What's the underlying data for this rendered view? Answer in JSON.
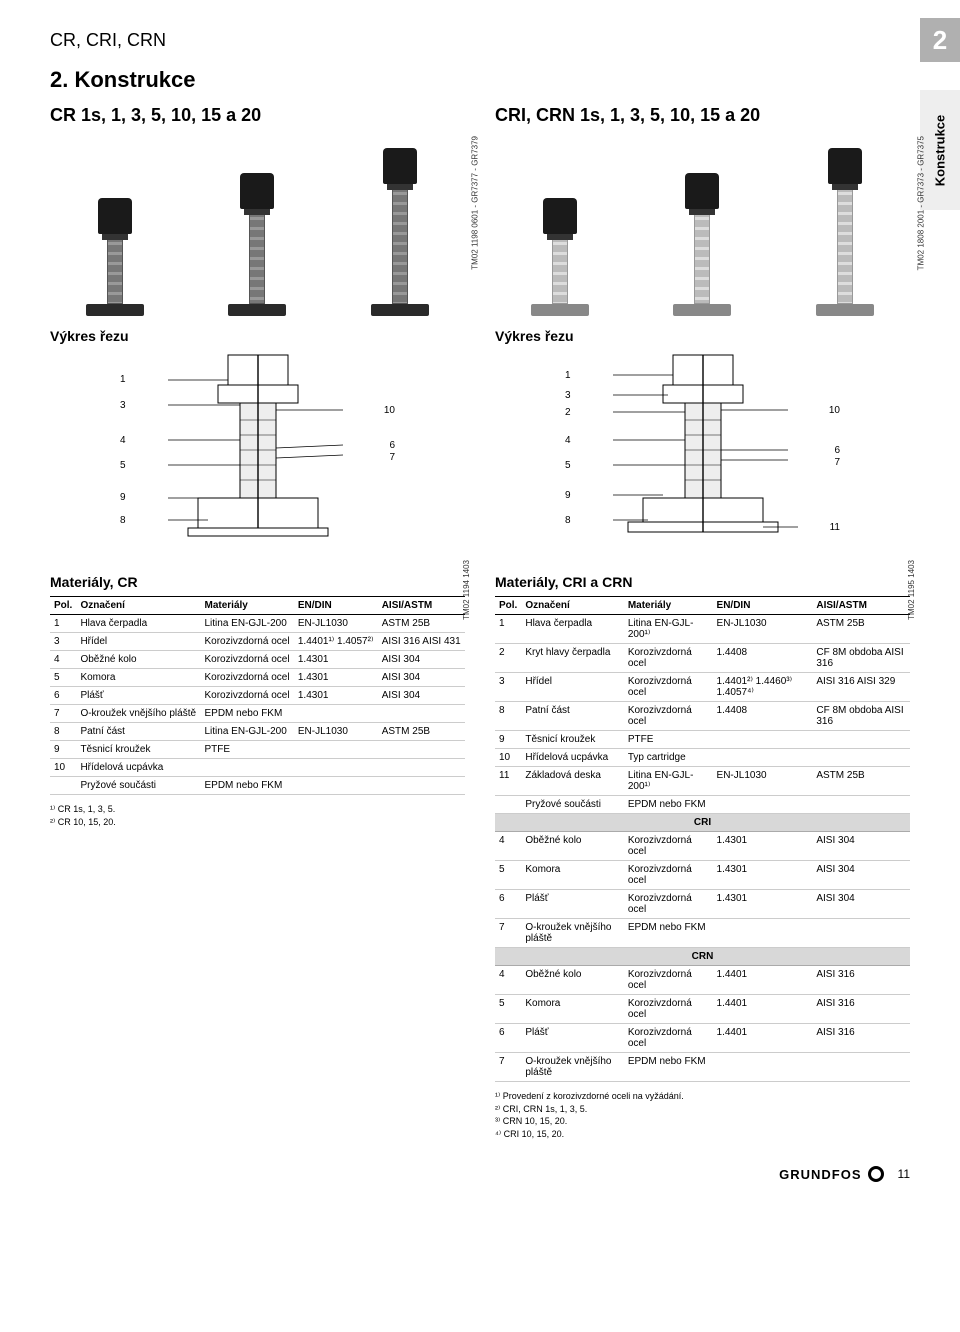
{
  "header": "CR, CRI, CRN",
  "page_tab": "2",
  "side_tab": "Konstrukce",
  "section_title": "2. Konstrukce",
  "left": {
    "title": "CR 1s, 1, 3, 5, 10, 15 a 20",
    "photo_code": "TM02 1198 0601 - GR7377 - GR7379",
    "section_label": "Výkres řezu",
    "cut_code": "TM02 1194 1403",
    "callouts_left": [
      "1",
      "3",
      "4",
      "5",
      "9",
      "8"
    ],
    "callouts_right": [
      "10",
      "6",
      "7"
    ],
    "mat_title": "Materiály, CR",
    "table": {
      "columns": [
        "Pol.",
        "Označení",
        "Materiály",
        "EN/DIN",
        "AISI/ASTM"
      ],
      "rows": [
        [
          "1",
          "Hlava čerpadla",
          "Litina EN-GJL-200",
          "EN-JL1030",
          "ASTM 25B"
        ],
        [
          "3",
          "Hřídel",
          "Korozivzdorná ocel",
          "1.4401¹⁾ 1.4057²⁾",
          "AISI 316 AISI 431"
        ],
        [
          "4",
          "Oběžné kolo",
          "Korozivzdorná ocel",
          "1.4301",
          "AISI 304"
        ],
        [
          "5",
          "Komora",
          "Korozivzdorná ocel",
          "1.4301",
          "AISI 304"
        ],
        [
          "6",
          "Plášť",
          "Korozivzdorná ocel",
          "1.4301",
          "AISI 304"
        ],
        [
          "7",
          "O-kroužek vnějšího pláště",
          "EPDM nebo FKM",
          "",
          ""
        ],
        [
          "8",
          "Patní část",
          "Litina EN-GJL-200",
          "EN-JL1030",
          "ASTM 25B"
        ],
        [
          "9",
          "Těsnicí kroužek",
          "PTFE",
          "",
          ""
        ],
        [
          "10",
          "Hřídelová ucpávka",
          "",
          "",
          ""
        ],
        [
          "",
          "Pryžové součásti",
          "EPDM nebo FKM",
          "",
          ""
        ]
      ]
    },
    "notes": [
      "¹⁾  CR 1s, 1, 3, 5.",
      "²⁾  CR 10, 15, 20."
    ],
    "pump_heights": [
      70,
      95,
      120
    ]
  },
  "right": {
    "title": "CRI, CRN 1s, 1, 3, 5, 10, 15 a 20",
    "photo_code": "TM02 1808 2001 - GR7373 - GR7375",
    "section_label": "Výkres řezu",
    "cut_code": "TM02 1195 1403",
    "callouts_left": [
      "1",
      "3",
      "2",
      "4",
      "5",
      "9",
      "8"
    ],
    "callouts_right": [
      "10",
      "6",
      "7",
      "11"
    ],
    "mat_title": "Materiály, CRI a CRN",
    "table": {
      "columns": [
        "Pol.",
        "Označení",
        "Materiály",
        "EN/DIN",
        "AISI/ASTM"
      ],
      "rows": [
        [
          "1",
          "Hlava čerpadla",
          "Litina EN-GJL-200¹⁾",
          "EN-JL1030",
          "ASTM 25B"
        ],
        [
          "2",
          "Kryt hlavy čerpadla",
          "Korozivzdorná ocel",
          "1.4408",
          "CF 8M obdoba AISI 316"
        ],
        [
          "3",
          "Hřídel",
          "Korozivzdorná ocel",
          "1.4401²⁾ 1.4460³⁾ 1.4057⁴⁾",
          "AISI 316 AISI 329"
        ],
        [
          "8",
          "Patní část",
          "Korozivzdorná ocel",
          "1.4408",
          "CF 8M obdoba AISI 316"
        ],
        [
          "9",
          "Těsnicí kroužek",
          "PTFE",
          "",
          ""
        ],
        [
          "10",
          "Hřídelová ucpávka",
          "Typ cartridge",
          "",
          ""
        ],
        [
          "11",
          "Základová deska",
          "Litina EN-GJL-200¹⁾",
          "EN-JL1030",
          "ASTM 25B"
        ],
        [
          "",
          "Pryžové součásti",
          "EPDM nebo FKM",
          "",
          ""
        ]
      ],
      "section_cri": "CRI",
      "rows_cri": [
        [
          "4",
          "Oběžné kolo",
          "Korozivzdorná ocel",
          "1.4301",
          "AISI 304"
        ],
        [
          "5",
          "Komora",
          "Korozivzdorná ocel",
          "1.4301",
          "AISI 304"
        ],
        [
          "6",
          "Plášť",
          "Korozivzdorná ocel",
          "1.4301",
          "AISI 304"
        ],
        [
          "7",
          "O-kroužek vnějšího pláště",
          "EPDM nebo FKM",
          "",
          ""
        ]
      ],
      "section_crn": "CRN",
      "rows_crn": [
        [
          "4",
          "Oběžné kolo",
          "Korozivzdorná ocel",
          "1.4401",
          "AISI 316"
        ],
        [
          "5",
          "Komora",
          "Korozivzdorná ocel",
          "1.4401",
          "AISI 316"
        ],
        [
          "6",
          "Plášť",
          "Korozivzdorná ocel",
          "1.4401",
          "AISI 316"
        ],
        [
          "7",
          "O-kroužek vnějšího pláště",
          "EPDM nebo FKM",
          "",
          ""
        ]
      ]
    },
    "notes": [
      "¹⁾  Provedení z korozivzdorné oceli na vyžádání.",
      "²⁾  CRI, CRN 1s, 1, 3, 5.",
      "³⁾  CRN 10, 15, 20.",
      "⁴⁾  CRI 10, 15, 20."
    ],
    "pump_heights": [
      70,
      95,
      120
    ]
  },
  "footer": {
    "brand": "GRUNDFOS",
    "page": "11"
  }
}
